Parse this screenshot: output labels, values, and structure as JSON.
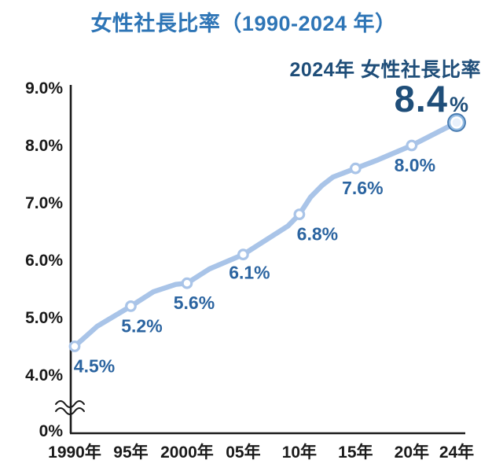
{
  "title": "女性社長比率（1990-2024 年）",
  "annotation": {
    "heading": "2024年 女性社長比率",
    "value": "8.4",
    "unit": "％"
  },
  "colors": {
    "title_blue": "#2E75B6",
    "annotation_navy": "#1F4E79",
    "data_label_blue": "#2B64A0",
    "line_blue": "#A9C4E8",
    "marker_fill": "#FFFFFF",
    "axis_black": "#1A1A1A",
    "final_marker_rim": "#4478AE",
    "final_marker_ring": "#93BBE2",
    "final_marker_center": "#E9F1FB"
  },
  "chart_data": {
    "type": "line",
    "title": "女性社長比率（1990-2024 年）",
    "series_name": "女性社長比率",
    "x": [
      1990,
      1995,
      2000,
      2005,
      2010,
      2015,
      2020,
      2024
    ],
    "x_tick_labels": [
      "1990年",
      "95年",
      "2000年",
      "05年",
      "10年",
      "15年",
      "20年",
      "24年"
    ],
    "values": [
      4.5,
      5.2,
      5.6,
      6.1,
      6.8,
      7.6,
      8.0,
      8.4
    ],
    "point_labels": [
      "4.5%",
      "5.2%",
      "5.6%",
      "6.1%",
      "6.8%",
      "7.6%",
      "8.0%",
      ""
    ],
    "final_point_label": "8.4％",
    "y_ticks": [
      {
        "label": "9.0%",
        "value": 9.0
      },
      {
        "label": "8.0%",
        "value": 8.0
      },
      {
        "label": "7.0%",
        "value": 7.0
      },
      {
        "label": "6.0%",
        "value": 6.0
      },
      {
        "label": "5.0%",
        "value": 5.0
      },
      {
        "label": "4.0%",
        "value": 4.0
      },
      {
        "label": "0%",
        "value": 0.0
      }
    ],
    "ylim_displayed": [
      4.0,
      9.0
    ],
    "axis_break": true,
    "grid": false,
    "legend": false,
    "curve_shape_points": [
      [
        1990,
        4.5
      ],
      [
        1992,
        4.85
      ],
      [
        1995,
        5.2
      ],
      [
        1997,
        5.45
      ],
      [
        1999,
        5.58
      ],
      [
        2000,
        5.6
      ],
      [
        2002,
        5.85
      ],
      [
        2005,
        6.1
      ],
      [
        2007,
        6.35
      ],
      [
        2009,
        6.6
      ],
      [
        2010,
        6.8
      ],
      [
        2011,
        7.1
      ],
      [
        2012,
        7.3
      ],
      [
        2013,
        7.45
      ],
      [
        2015,
        7.6
      ],
      [
        2017,
        7.75
      ],
      [
        2020,
        8.0
      ],
      [
        2024,
        8.4
      ]
    ],
    "label_dx": [
      25,
      14,
      9,
      8,
      23,
      9,
      4,
      0
    ],
    "label_dy": [
      33,
      33,
      33,
      31,
      33,
      33,
      33,
      0
    ]
  }
}
